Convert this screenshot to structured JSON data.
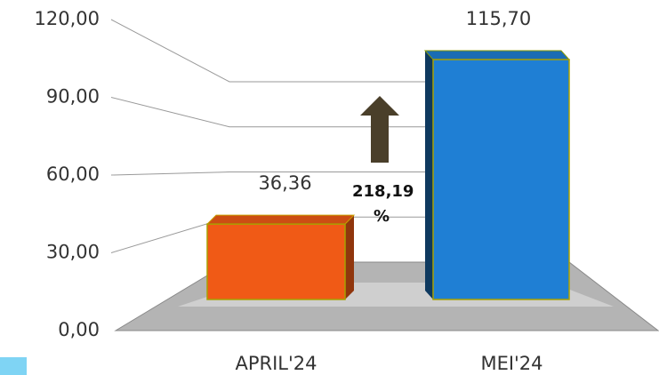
{
  "chart_data": {
    "type": "bar3d",
    "categories": [
      "APRIL'24",
      "MEI'24"
    ],
    "values": [
      36.36,
      115.7
    ],
    "value_labels": [
      "36,36",
      "115,70"
    ],
    "colors": [
      "#f05a16",
      "#1f7fd4"
    ],
    "ylim": [
      0,
      120
    ],
    "yticks": [
      {
        "value": 0,
        "label": "0,00"
      },
      {
        "value": 30,
        "label": "30,00"
      },
      {
        "value": 60,
        "label": "60,00"
      },
      {
        "value": 90,
        "label": "90,00"
      },
      {
        "value": 120,
        "label": "120,00"
      }
    ],
    "annotation": "218,19 %",
    "grid": true
  }
}
